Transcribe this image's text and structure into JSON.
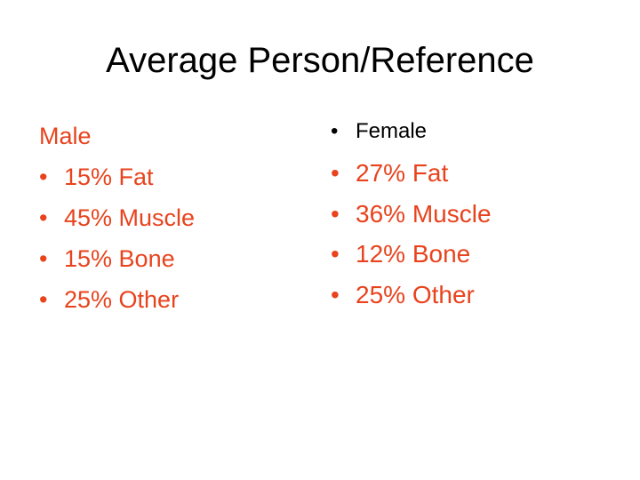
{
  "slide": {
    "title": "Average Person/Reference",
    "accent_color": "#e8431d",
    "bullet_char": "•"
  },
  "male": {
    "heading": "Male",
    "items": [
      "15% Fat",
      "45% Muscle",
      "15% Bone",
      "25% Other"
    ]
  },
  "female": {
    "heading": "Female",
    "items": [
      "27% Fat",
      "36% Muscle",
      "12% Bone",
      "25% Other"
    ]
  }
}
